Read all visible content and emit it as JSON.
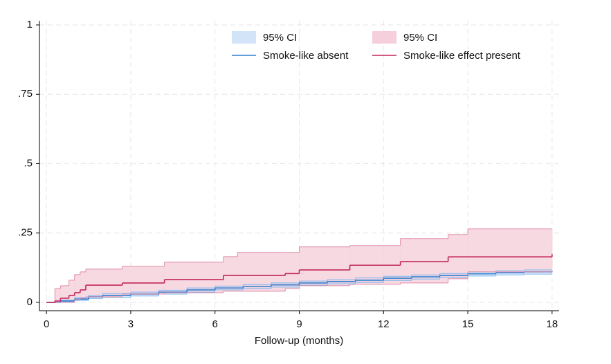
{
  "chart_data": {
    "type": "step",
    "xlabel": "Follow-up (months)",
    "xlim": [
      -0.25,
      18.25
    ],
    "xticks": [
      0,
      3,
      6,
      9,
      12,
      15,
      18
    ],
    "ylim": [
      -0.03,
      1.015
    ],
    "yticks": [
      0,
      {
        "value": 0.25,
        "label": ".25"
      },
      {
        "value": 0.5,
        "label": ".5"
      },
      {
        "value": 0.75,
        "label": ".75"
      },
      1
    ],
    "grid": true,
    "series": [
      {
        "name": "Smoke-like absent",
        "ci_label": "95% CI",
        "color": "#2f7fd0",
        "band_color": "#d3e4f8",
        "band_edge": "#7db6ee",
        "x": [
          0,
          0.5,
          1,
          1.5,
          2,
          3,
          4,
          5,
          6,
          7,
          8,
          9,
          10,
          11,
          12,
          13,
          14,
          15,
          16,
          17,
          18
        ],
        "values": [
          0,
          0.005,
          0.012,
          0.02,
          0.025,
          0.03,
          0.037,
          0.045,
          0.052,
          0.057,
          0.063,
          0.07,
          0.075,
          0.08,
          0.087,
          0.092,
          0.097,
          0.103,
          0.107,
          0.11,
          0.112
        ],
        "upper": [
          0,
          0.008,
          0.017,
          0.026,
          0.032,
          0.037,
          0.044,
          0.052,
          0.059,
          0.064,
          0.07,
          0.077,
          0.082,
          0.088,
          0.094,
          0.099,
          0.104,
          0.11,
          0.114,
          0.117,
          0.118
        ],
        "lower": [
          0,
          0.002,
          0.007,
          0.014,
          0.018,
          0.023,
          0.03,
          0.037,
          0.045,
          0.05,
          0.055,
          0.062,
          0.067,
          0.072,
          0.079,
          0.084,
          0.089,
          0.095,
          0.099,
          0.102,
          0.104
        ]
      },
      {
        "name": "Smoke-like effect present",
        "ci_label": "95% CI",
        "color": "#c2255b",
        "band_color": "#f5cfdb",
        "band_edge": "#e08ba8",
        "x": [
          0,
          0.3,
          0.5,
          0.8,
          1.0,
          1.2,
          1.4,
          2.7,
          4.2,
          6.3,
          6.8,
          8.5,
          9.0,
          10.8,
          12.6,
          14.3,
          15.0,
          18
        ],
        "values": [
          0,
          0.005,
          0.015,
          0.025,
          0.035,
          0.045,
          0.062,
          0.07,
          0.082,
          0.097,
          0.097,
          0.104,
          0.117,
          0.134,
          0.147,
          0.164,
          0.164,
          0.174
        ],
        "upper": [
          0,
          0.05,
          0.06,
          0.08,
          0.1,
          0.11,
          0.12,
          0.13,
          0.145,
          0.165,
          0.18,
          0.18,
          0.2,
          0.205,
          0.23,
          0.245,
          0.265,
          0.265
        ],
        "lower": [
          0,
          0,
          0,
          0,
          0.01,
          0.015,
          0.02,
          0.03,
          0.035,
          0.04,
          0.04,
          0.05,
          0.06,
          0.065,
          0.07,
          0.085,
          0.11,
          0.11
        ]
      }
    ]
  }
}
